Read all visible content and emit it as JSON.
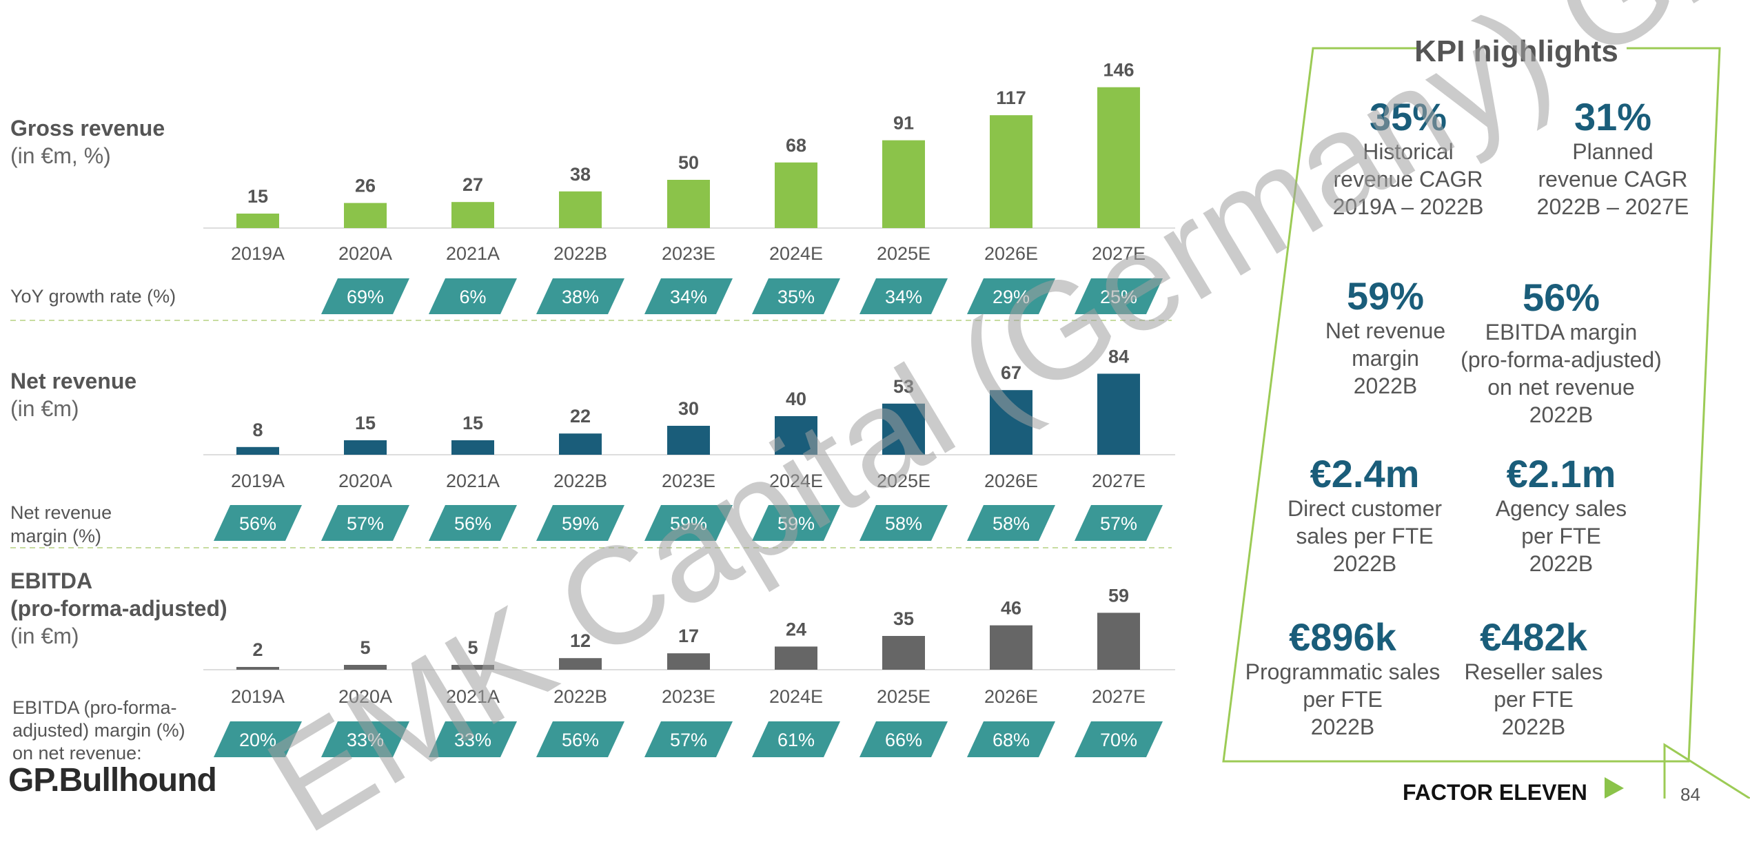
{
  "colors": {
    "gross_bar": "#8bc34a",
    "net_bar": "#1a5d7a",
    "ebitda_bar": "#666666",
    "badge": "#3a9896",
    "kpi_value": "#1a5d7a",
    "kpi_border": "#9ccb55"
  },
  "sections": {
    "gross": {
      "title": "Gross revenue",
      "subtitle": "(in €m, %)",
      "rate_label": "YoY growth rate (%)"
    },
    "net": {
      "title": "Net revenue",
      "subtitle": "(in €m)",
      "rate_label_line1": "Net revenue",
      "rate_label_line2": "margin (%)"
    },
    "ebitda": {
      "title_line1": "EBITDA",
      "title_line2": "(pro-forma-adjusted)",
      "subtitle": "(in €m)",
      "rate_label_line1": "EBITDA (pro-forma-",
      "rate_label_line2": "adjusted) margin (%)",
      "rate_label_line3": "on net revenue:"
    }
  },
  "chart_data": [
    {
      "type": "bar",
      "title": "Gross revenue",
      "categories": [
        "2019A",
        "2020A",
        "2021A",
        "2022B",
        "2023E",
        "2024E",
        "2025E",
        "2026E",
        "2027E"
      ],
      "values": [
        15,
        26,
        27,
        38,
        50,
        68,
        91,
        117,
        146
      ],
      "rates": [
        "",
        "69%",
        "6%",
        "38%",
        "34%",
        "35%",
        "34%",
        "29%",
        "25%"
      ]
    },
    {
      "type": "bar",
      "title": "Net revenue",
      "categories": [
        "2019A",
        "2020A",
        "2021A",
        "2022B",
        "2023E",
        "2024E",
        "2025E",
        "2026E",
        "2027E"
      ],
      "values": [
        8,
        15,
        15,
        22,
        30,
        40,
        53,
        67,
        84
      ],
      "rates": [
        "56%",
        "57%",
        "56%",
        "59%",
        "59%",
        "59%",
        "58%",
        "58%",
        "57%"
      ]
    },
    {
      "type": "bar",
      "title": "EBITDA (pro-forma-adjusted)",
      "categories": [
        "2019A",
        "2020A",
        "2021A",
        "2022B",
        "2023E",
        "2024E",
        "2025E",
        "2026E",
        "2027E"
      ],
      "values": [
        2,
        5,
        5,
        12,
        17,
        24,
        35,
        46,
        59
      ],
      "rates": [
        "20%",
        "33%",
        "33%",
        "56%",
        "57%",
        "61%",
        "66%",
        "68%",
        "70%"
      ]
    }
  ],
  "kpi": {
    "title": "KPI highlights",
    "items": [
      {
        "value": "35%",
        "lines": [
          "Historical",
          "revenue CAGR",
          "2019A – 2022B"
        ]
      },
      {
        "value": "31%",
        "lines": [
          "Planned",
          "revenue CAGR",
          "2022B – 2027E"
        ]
      },
      {
        "value": "59%",
        "lines": [
          "Net revenue",
          "margin",
          "2022B"
        ]
      },
      {
        "value": "56%",
        "lines": [
          "EBITDA margin",
          "(pro-forma-adjusted)",
          "on net revenue",
          "2022B"
        ]
      },
      {
        "value": "€2.4m",
        "lines": [
          "Direct customer",
          "sales per FTE",
          "2022B"
        ]
      },
      {
        "value": "€2.1m",
        "lines": [
          "Agency sales",
          "per FTE",
          "2022B"
        ]
      },
      {
        "value": "€896k",
        "lines": [
          "Programmatic sales",
          "per FTE",
          "2022B"
        ]
      },
      {
        "value": "€482k",
        "lines": [
          "Reseller sales",
          "per FTE",
          "2022B"
        ]
      }
    ]
  },
  "watermark": "EMK Capital (Germany) GmbH",
  "footer": {
    "left_logo": "GP.Bullhound",
    "right_logo": "FACTOR ELEVEN",
    "page_number": "84"
  }
}
